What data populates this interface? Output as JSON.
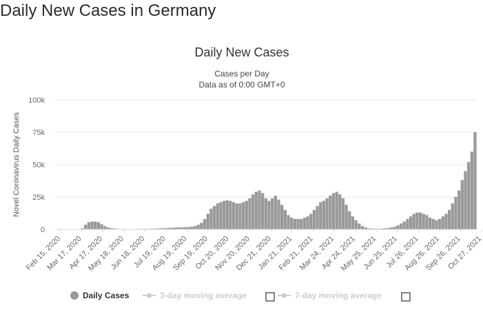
{
  "page": {
    "title": "Daily New Cases in Germany"
  },
  "chart_data": {
    "type": "bar",
    "title": "Daily New Cases",
    "subtitle_line1": "Cases per Day",
    "subtitle_line2": "Data as of 0:00 GMT+0",
    "ylabel": "Novel Coronavirus Daily Cases",
    "xlabel": "",
    "ylim": [
      0,
      100000
    ],
    "y_ticks": [
      {
        "value": 0,
        "label": "0"
      },
      {
        "value": 25000,
        "label": "25k"
      },
      {
        "value": 50000,
        "label": "50k"
      },
      {
        "value": 75000,
        "label": "75k"
      },
      {
        "value": 100000,
        "label": "100k"
      }
    ],
    "x_tick_labels": [
      "Feb 15, 2020",
      "Mar 17, 2020",
      "Apr 17, 2020",
      "May 18, 2020",
      "Jun 18, 2020",
      "Jul 19, 2020",
      "Aug 19, 2020",
      "Sep 19, 2020",
      "Oct 20, 2020",
      "Nov 20, 2020",
      "Dec 21, 2020",
      "Jan 21, 2021",
      "Feb 21, 2021",
      "Mar 24, 2021",
      "Apr 24, 2021",
      "May 25, 2021",
      "Jun 25, 2021",
      "Jul 26, 2021",
      "Aug 26, 2021",
      "Sep 26, 2021",
      "Oct 27, 2021"
    ],
    "grid": true,
    "legend_position": "bottom",
    "colors": {
      "bar": "#999999",
      "grid": "#e6e6e6",
      "legend_inactive": "#cccccc"
    },
    "legend": [
      {
        "label": "Daily Cases",
        "active": true
      },
      {
        "label": "3-day moving average",
        "active": false
      },
      {
        "label": "7-day moving average",
        "active": false
      }
    ],
    "series": [
      {
        "name": "Daily Cases",
        "x_start": "2020-02-15",
        "bar_step_days": 4,
        "values": [
          0,
          0,
          0,
          0,
          0,
          0,
          0,
          0,
          800,
          3500,
          5500,
          6000,
          6000,
          5500,
          4000,
          2500,
          1500,
          1000,
          600,
          400,
          300,
          300,
          300,
          200,
          200,
          300,
          300,
          400,
          400,
          500,
          500,
          600,
          800,
          900,
          1000,
          1200,
          1300,
          1400,
          1500,
          1600,
          1700,
          1800,
          2000,
          2500,
          3500,
          5000,
          8000,
          12000,
          16000,
          18000,
          20000,
          21000,
          22000,
          22500,
          22000,
          21000,
          20000,
          20000,
          21000,
          22000,
          24000,
          27000,
          29000,
          30000,
          28000,
          24000,
          22000,
          24000,
          26000,
          23000,
          19000,
          15000,
          11000,
          9000,
          8000,
          8000,
          8000,
          9000,
          10000,
          12000,
          15000,
          18000,
          21000,
          22000,
          24000,
          26000,
          28000,
          29000,
          27000,
          24000,
          19000,
          14000,
          10000,
          7000,
          4500,
          2500,
          1500,
          800,
          600,
          500,
          500,
          600,
          800,
          1000,
          1500,
          2000,
          3000,
          4500,
          6000,
          8000,
          10000,
          12000,
          13000,
          13000,
          12000,
          11000,
          9000,
          8000,
          7000,
          8000,
          10000,
          12000,
          15000,
          20000,
          25000,
          30000,
          38000,
          45000,
          52000,
          60000,
          75000
        ]
      }
    ]
  }
}
